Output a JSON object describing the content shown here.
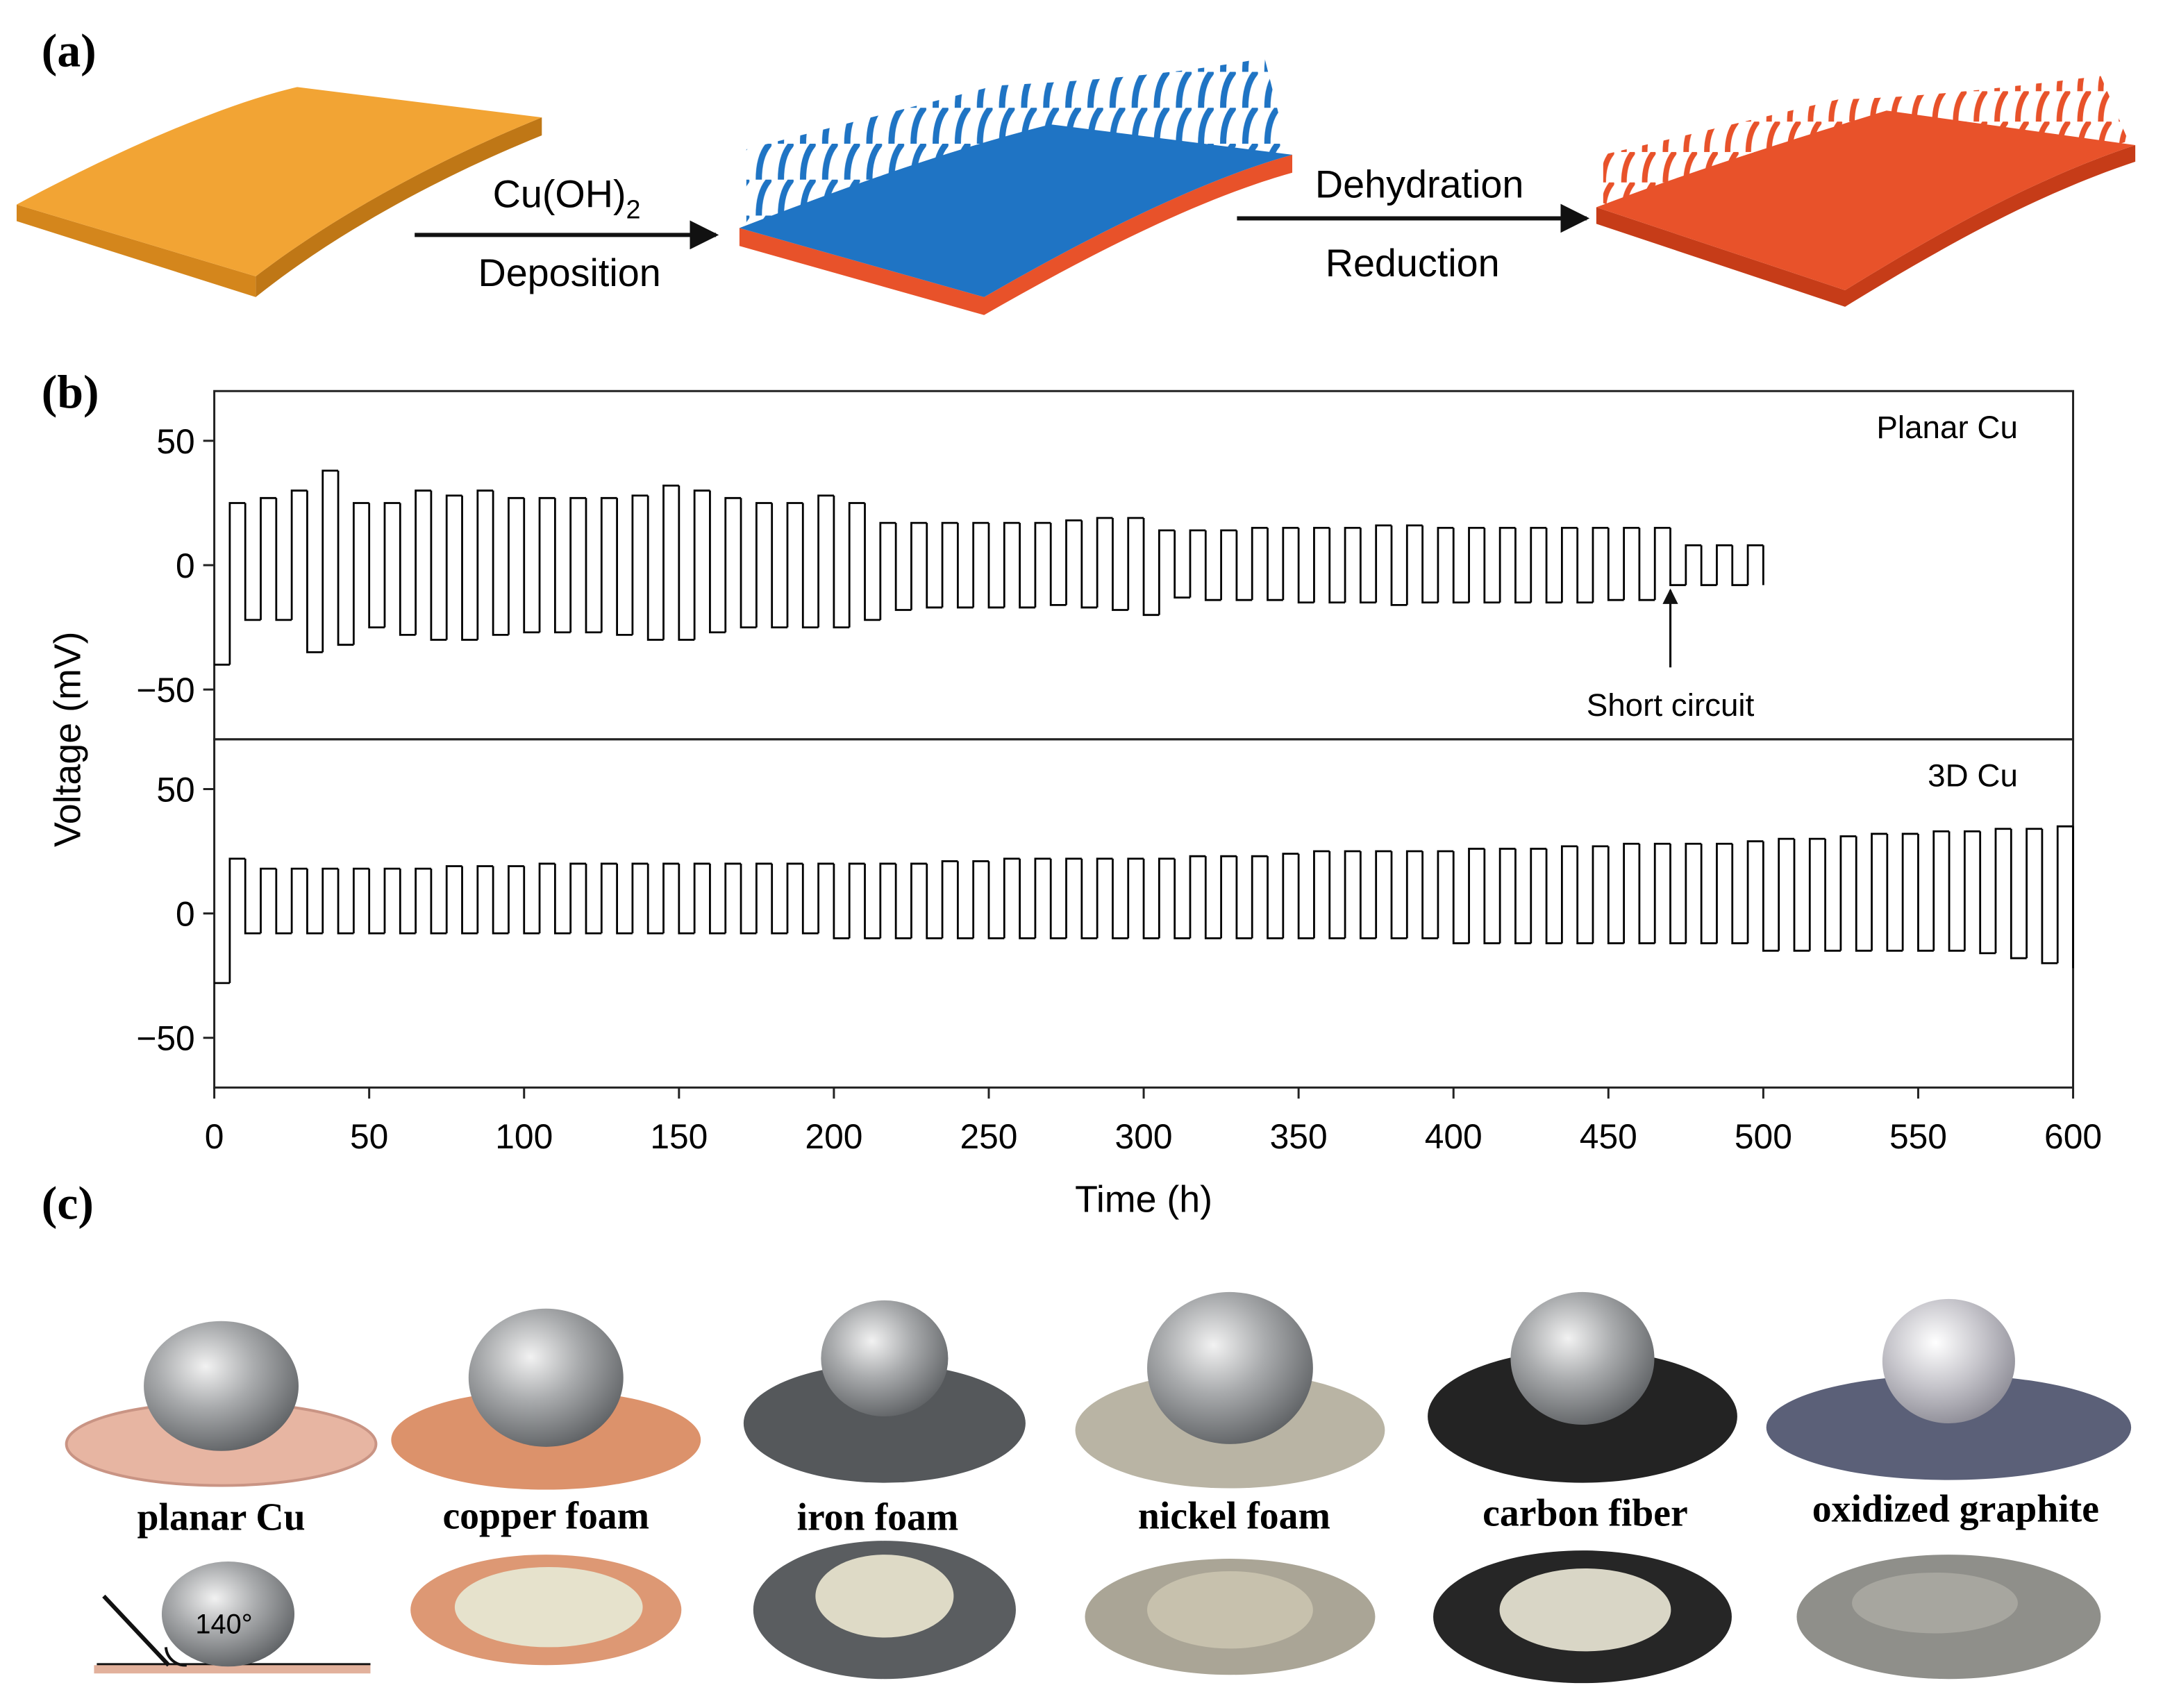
{
  "panel_a": {
    "label": "(a)",
    "step1": {
      "top": "Cu(OH)",
      "sub": "2",
      "bottom": "Deposition"
    },
    "step2": {
      "top": "Dehydration",
      "bottom": "Reduction"
    }
  },
  "panel_b_label": "(b)",
  "chart_data": [
    {
      "type": "line",
      "step": true,
      "label": "Planar Cu",
      "ylabel": "Voltage (mV)",
      "xlim": [
        0,
        600
      ],
      "ylim": [
        -70,
        70
      ],
      "yticks": [
        {
          "value": -50,
          "label": "−50"
        },
        0,
        50
      ],
      "annotations": [
        {
          "text": "Short circuit",
          "x": 470
        }
      ],
      "series": [
        {
          "color": "#000000",
          "x": [
            0,
            5,
            10,
            15,
            20,
            25,
            30,
            35,
            40,
            45,
            50,
            55,
            60,
            65,
            70,
            75,
            80,
            85,
            90,
            95,
            100,
            105,
            110,
            115,
            120,
            125,
            130,
            135,
            140,
            145,
            150,
            155,
            160,
            165,
            170,
            175,
            180,
            185,
            190,
            195,
            200,
            205,
            210,
            215,
            220,
            225,
            230,
            235,
            240,
            245,
            250,
            255,
            260,
            265,
            270,
            275,
            280,
            285,
            290,
            295,
            300,
            305,
            310,
            315,
            320,
            325,
            330,
            335,
            340,
            345,
            350,
            355,
            360,
            365,
            370,
            375,
            380,
            385,
            390,
            395,
            400,
            405,
            410,
            415,
            420,
            425,
            430,
            435,
            440,
            445,
            450,
            455,
            460,
            465,
            470,
            475,
            480,
            485,
            490,
            495,
            500
          ],
          "values": [
            -40,
            25,
            -22,
            27,
            -22,
            30,
            -35,
            38,
            -32,
            25,
            -25,
            25,
            -28,
            30,
            -30,
            28,
            -30,
            30,
            -28,
            27,
            -27,
            27,
            -27,
            27,
            -27,
            27,
            -28,
            28,
            -30,
            32,
            -30,
            30,
            -27,
            27,
            -25,
            25,
            -25,
            25,
            -25,
            28,
            -25,
            25,
            -22,
            17,
            -18,
            17,
            -17,
            17,
            -17,
            17,
            -17,
            17,
            -17,
            17,
            -16,
            18,
            -17,
            19,
            -18,
            19,
            -20,
            14,
            -13,
            14,
            -14,
            14,
            -14,
            15,
            -14,
            15,
            -15,
            15,
            -15,
            15,
            -15,
            16,
            -16,
            16,
            -15,
            15,
            -15,
            15,
            -15,
            15,
            -15,
            15,
            -15,
            15,
            -15,
            15,
            -14,
            15,
            -14,
            15,
            -8,
            8,
            -8,
            8,
            -8,
            8,
            -8
          ]
        }
      ]
    },
    {
      "type": "line",
      "step": true,
      "label": "3D Cu",
      "xlabel": "Time (h)",
      "xlim": [
        0,
        600
      ],
      "xticks": [
        0,
        50,
        100,
        150,
        200,
        250,
        300,
        350,
        400,
        450,
        500,
        550,
        600
      ],
      "ylim": [
        -70,
        70
      ],
      "yticks": [
        {
          "value": -50,
          "label": "−50"
        },
        0,
        50
      ],
      "series": [
        {
          "color": "#000000",
          "x": [
            0,
            5,
            10,
            15,
            20,
            25,
            30,
            35,
            40,
            45,
            50,
            55,
            60,
            65,
            70,
            75,
            80,
            85,
            90,
            95,
            100,
            105,
            110,
            115,
            120,
            125,
            130,
            135,
            140,
            145,
            150,
            155,
            160,
            165,
            170,
            175,
            180,
            185,
            190,
            195,
            200,
            205,
            210,
            215,
            220,
            225,
            230,
            235,
            240,
            245,
            250,
            255,
            260,
            265,
            270,
            275,
            280,
            285,
            290,
            295,
            300,
            305,
            310,
            315,
            320,
            325,
            330,
            335,
            340,
            345,
            350,
            355,
            360,
            365,
            370,
            375,
            380,
            385,
            390,
            395,
            400,
            405,
            410,
            415,
            420,
            425,
            430,
            435,
            440,
            445,
            450,
            455,
            460,
            465,
            470,
            475,
            480,
            485,
            490,
            495,
            500,
            505,
            510,
            515,
            520,
            525,
            530,
            535,
            540,
            545,
            550,
            555,
            560,
            565,
            570,
            575,
            580,
            585,
            590,
            595,
            600
          ],
          "values": [
            -28,
            22,
            -8,
            18,
            -8,
            18,
            -8,
            18,
            -8,
            18,
            -8,
            18,
            -8,
            18,
            -8,
            19,
            -8,
            19,
            -8,
            19,
            -8,
            20,
            -8,
            20,
            -8,
            20,
            -8,
            20,
            -8,
            20,
            -8,
            20,
            -8,
            20,
            -8,
            20,
            -8,
            20,
            -8,
            20,
            -10,
            20,
            -10,
            20,
            -10,
            20,
            -10,
            21,
            -10,
            21,
            -10,
            22,
            -10,
            22,
            -10,
            22,
            -10,
            22,
            -10,
            22,
            -10,
            22,
            -10,
            23,
            -10,
            23,
            -10,
            23,
            -10,
            24,
            -10,
            25,
            -10,
            25,
            -10,
            25,
            -10,
            25,
            -10,
            25,
            -12,
            26,
            -12,
            26,
            -12,
            26,
            -12,
            27,
            -12,
            27,
            -12,
            28,
            -12,
            28,
            -12,
            28,
            -12,
            28,
            -12,
            29,
            -15,
            30,
            -15,
            30,
            -15,
            31,
            -15,
            32,
            -15,
            32,
            -15,
            33,
            -15,
            33,
            -16,
            34,
            -18,
            34,
            -20,
            35,
            -22
          ]
        }
      ]
    }
  ],
  "panel_c": {
    "label": "(c)",
    "samples": [
      "planar Cu",
      "copper foam",
      "iron foam",
      "nickel foam",
      "carbon fiber",
      "oxidized graphite"
    ],
    "angle": "140°"
  }
}
